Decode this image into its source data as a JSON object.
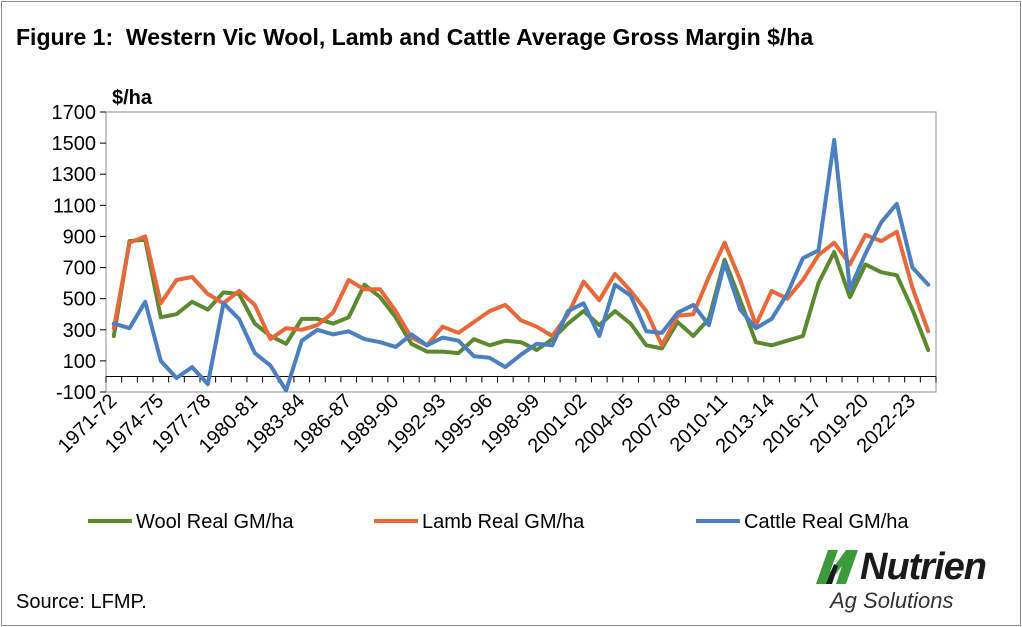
{
  "header": {
    "title": "Figure 1:  Western Vic Wool, Lamb and Cattle Average Gross Margin $/ha"
  },
  "footer": {
    "source": "Source: LFMP."
  },
  "logo": {
    "name": "Nutrien",
    "subtitle": "Ag Solutions"
  },
  "chart_data": {
    "type": "line",
    "title": "Figure 1:  Western Vic Wool, Lamb and Cattle Average Gross Margin $/ha",
    "ylabel": "$/ha",
    "ylim": [
      -100,
      1700
    ],
    "yticks": [
      -100,
      100,
      300,
      500,
      700,
      900,
      1100,
      1300,
      1500,
      1700
    ],
    "ytick_labels": [
      "-100",
      "100",
      "300",
      "500",
      "700",
      "900",
      "1100",
      "1300",
      "1500",
      "1700"
    ],
    "grid": false,
    "legend_position": "bottom",
    "x": [
      "1971-72",
      "1972-73",
      "1973-74",
      "1974-75",
      "1975-76",
      "1976-77",
      "1977-78",
      "1978-79",
      "1979-80",
      "1980-81",
      "1981-82",
      "1982-83",
      "1983-84",
      "1984-85",
      "1985-86",
      "1986-87",
      "1987-88",
      "1988-89",
      "1989-90",
      "1990-91",
      "1991-92",
      "1992-93",
      "1993-94",
      "1994-95",
      "1995-96",
      "1996-97",
      "1997-98",
      "1998-99",
      "1999-00",
      "2000-01",
      "2001-02",
      "2002-03",
      "2003-04",
      "2004-05",
      "2005-06",
      "2006-07",
      "2007-08",
      "2008-09",
      "2009-10",
      "2010-11",
      "2011-12",
      "2012-13",
      "2013-14",
      "2014-15",
      "2015-16",
      "2016-17",
      "2017-18",
      "2018-19",
      "2019-20",
      "2020-21",
      "2021-22",
      "2022-23",
      "2023-24"
    ],
    "x_tick_labels": [
      "1971-72",
      "1974-75",
      "1977-78",
      "1980-81",
      "1983-84",
      "1986-87",
      "1989-90",
      "1992-93",
      "1995-96",
      "1998-99",
      "2001-02",
      "2004-05",
      "2007-08",
      "2010-11",
      "2013-14",
      "2016-17",
      "2019-20",
      "2022-23"
    ],
    "series": [
      {
        "name": "Wool Real GM/ha",
        "color": "#5b8a2e",
        "values": [
          260,
          870,
          880,
          380,
          400,
          480,
          430,
          540,
          530,
          340,
          260,
          210,
          370,
          370,
          340,
          380,
          590,
          510,
          380,
          210,
          160,
          160,
          150,
          240,
          200,
          230,
          220,
          170,
          240,
          340,
          420,
          330,
          420,
          340,
          200,
          180,
          350,
          260,
          370,
          750,
          490,
          220,
          200,
          230,
          260,
          600,
          800,
          510,
          720,
          670,
          650,
          430,
          170
        ]
      },
      {
        "name": "Lamb Real GM/ha",
        "color": "#e8683a",
        "values": [
          310,
          860,
          900,
          470,
          620,
          640,
          530,
          470,
          550,
          460,
          240,
          310,
          300,
          330,
          410,
          620,
          560,
          560,
          420,
          250,
          200,
          320,
          280,
          350,
          420,
          460,
          360,
          320,
          260,
          400,
          610,
          490,
          660,
          550,
          420,
          200,
          390,
          400,
          640,
          860,
          620,
          330,
          550,
          500,
          620,
          780,
          860,
          720,
          910,
          870,
          930,
          570,
          290
        ]
      },
      {
        "name": "Cattle Real GM/ha",
        "color": "#4a7fc1",
        "values": [
          340,
          310,
          480,
          100,
          -10,
          60,
          -50,
          470,
          370,
          150,
          70,
          -90,
          230,
          300,
          270,
          290,
          240,
          220,
          190,
          270,
          200,
          250,
          230,
          130,
          120,
          60,
          140,
          210,
          200,
          420,
          470,
          260,
          590,
          520,
          290,
          280,
          410,
          460,
          330,
          730,
          430,
          310,
          370,
          530,
          760,
          810,
          1520,
          560,
          790,
          990,
          1110,
          700,
          590
        ]
      }
    ]
  }
}
